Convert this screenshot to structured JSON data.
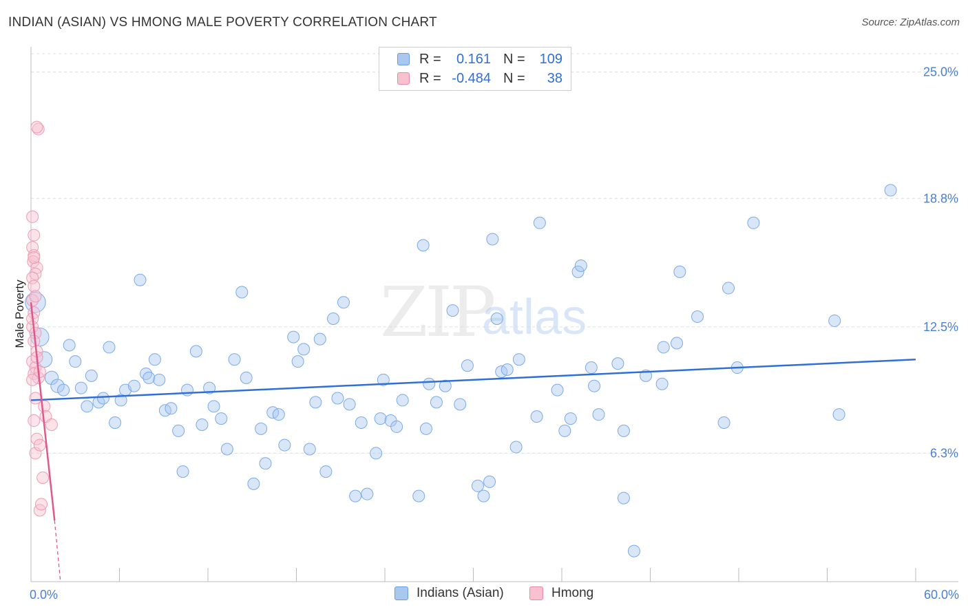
{
  "header": {
    "title": "INDIAN (ASIAN) VS HMONG MALE POVERTY CORRELATION CHART",
    "source": "Source: ZipAtlas.com"
  },
  "watermark": {
    "zip": "ZIP",
    "atlas": "atlas"
  },
  "legend": {
    "rows": [
      {
        "r_label": "R =",
        "r_value": "0.161",
        "n_label": "N =",
        "n_value": "109",
        "color": "#a8c8f0",
        "border": "#6a9be0"
      },
      {
        "r_label": "R =",
        "r_value": "-0.484",
        "n_label": "N =",
        "n_value": "38",
        "color": "#f9c0d0",
        "border": "#e88aa6"
      }
    ]
  },
  "bottom_legend": {
    "items": [
      {
        "label": "Indians (Asian)",
        "color": "#a8c8f0",
        "border": "#6a9be0"
      },
      {
        "label": "Hmong",
        "color": "#f9c0d0",
        "border": "#e88aa6"
      }
    ]
  },
  "chart_data": {
    "type": "scatter",
    "title": "INDIAN (ASIAN) VS HMONG MALE POVERTY CORRELATION CHART",
    "xlabel": "",
    "ylabel": "Male Poverty",
    "xlim": [
      0,
      60
    ],
    "ylim": [
      0,
      25.9
    ],
    "x_tick_labels": [
      "0.0%",
      "60.0%"
    ],
    "y_tick_labels": [
      "6.3%",
      "12.5%",
      "18.8%",
      "25.0%"
    ],
    "y_ticks": [
      6.3,
      12.5,
      18.8,
      25.0
    ],
    "grid": true,
    "series": [
      {
        "name": "Indians (Asian)",
        "color": "#7aaae8",
        "trend": {
          "x": [
            0,
            60
          ],
          "y": [
            8.9,
            10.9
          ]
        },
        "points": [
          [
            0.3,
            13.7,
            3
          ],
          [
            0.6,
            12.0,
            2.4
          ],
          [
            0.9,
            10.9,
            1.8
          ],
          [
            1.4,
            10.0,
            1.3
          ],
          [
            1.8,
            9.6,
            1.3
          ],
          [
            2.2,
            9.4,
            1
          ],
          [
            2.6,
            11.6,
            1
          ],
          [
            3.0,
            10.8,
            1
          ],
          [
            3.4,
            9.5,
            1
          ],
          [
            3.8,
            8.6,
            1
          ],
          [
            4.1,
            10.1,
            1
          ],
          [
            4.6,
            8.8,
            1
          ],
          [
            4.9,
            9.0,
            1
          ],
          [
            5.3,
            11.5,
            1
          ],
          [
            5.7,
            7.8,
            1
          ],
          [
            6.1,
            8.9,
            1
          ],
          [
            6.4,
            9.4,
            1
          ],
          [
            7.0,
            9.6,
            1
          ],
          [
            7.4,
            14.8,
            1
          ],
          [
            7.8,
            10.2,
            1
          ],
          [
            8.0,
            10.0,
            1
          ],
          [
            8.4,
            10.9,
            1
          ],
          [
            8.7,
            9.9,
            1
          ],
          [
            9.1,
            8.4,
            1
          ],
          [
            9.5,
            8.5,
            1
          ],
          [
            10.0,
            7.4,
            1
          ],
          [
            10.3,
            5.4,
            1
          ],
          [
            10.6,
            9.4,
            1
          ],
          [
            11.2,
            11.3,
            1
          ],
          [
            11.6,
            7.7,
            1
          ],
          [
            12.1,
            9.5,
            1
          ],
          [
            12.4,
            8.6,
            1
          ],
          [
            12.9,
            8.0,
            1
          ],
          [
            13.3,
            6.5,
            1
          ],
          [
            13.8,
            10.9,
            1
          ],
          [
            14.3,
            14.2,
            1
          ],
          [
            14.6,
            10.0,
            1
          ],
          [
            15.1,
            4.8,
            1
          ],
          [
            15.6,
            7.5,
            1
          ],
          [
            15.9,
            5.8,
            1
          ],
          [
            16.4,
            8.3,
            1
          ],
          [
            16.8,
            8.2,
            1
          ],
          [
            17.2,
            6.7,
            1
          ],
          [
            17.8,
            12.0,
            1
          ],
          [
            18.1,
            10.8,
            1
          ],
          [
            18.5,
            11.4,
            1
          ],
          [
            18.9,
            6.5,
            1
          ],
          [
            19.3,
            8.8,
            1
          ],
          [
            19.6,
            11.9,
            1
          ],
          [
            20.0,
            5.4,
            1
          ],
          [
            20.5,
            12.9,
            1
          ],
          [
            20.8,
            9.0,
            1
          ],
          [
            21.2,
            13.7,
            1
          ],
          [
            21.6,
            8.7,
            1
          ],
          [
            22.0,
            4.2,
            1
          ],
          [
            22.4,
            7.8,
            1
          ],
          [
            22.8,
            4.3,
            1
          ],
          [
            23.4,
            6.3,
            1
          ],
          [
            23.7,
            8.0,
            1
          ],
          [
            23.9,
            9.9,
            1
          ],
          [
            24.4,
            7.9,
            1
          ],
          [
            24.8,
            7.6,
            1
          ],
          [
            25.2,
            8.9,
            1
          ],
          [
            26.3,
            4.2,
            1
          ],
          [
            26.6,
            16.5,
            1
          ],
          [
            26.8,
            7.5,
            1
          ],
          [
            27.0,
            9.7,
            1
          ],
          [
            27.5,
            8.8,
            1
          ],
          [
            28.1,
            9.6,
            1
          ],
          [
            28.6,
            13.3,
            1
          ],
          [
            29.1,
            8.7,
            1
          ],
          [
            29.6,
            10.6,
            1
          ],
          [
            30.3,
            4.7,
            1
          ],
          [
            30.7,
            4.2,
            1
          ],
          [
            31.1,
            4.9,
            1
          ],
          [
            31.3,
            16.8,
            1
          ],
          [
            31.6,
            12.9,
            1
          ],
          [
            31.9,
            10.3,
            1
          ],
          [
            32.3,
            10.4,
            1
          ],
          [
            32.9,
            6.6,
            1
          ],
          [
            33.1,
            10.9,
            1
          ],
          [
            34.3,
            8.1,
            1
          ],
          [
            34.5,
            17.6,
            1
          ],
          [
            35.7,
            9.4,
            1
          ],
          [
            36.2,
            7.4,
            1
          ],
          [
            36.6,
            8.0,
            1
          ],
          [
            37.1,
            15.2,
            1
          ],
          [
            37.3,
            15.5,
            1
          ],
          [
            38.0,
            10.5,
            1
          ],
          [
            38.2,
            9.6,
            1
          ],
          [
            38.5,
            8.2,
            1
          ],
          [
            39.8,
            10.7,
            1
          ],
          [
            40.2,
            7.4,
            1
          ],
          [
            40.2,
            4.1,
            1
          ],
          [
            40.9,
            1.5,
            1
          ],
          [
            41.7,
            10.1,
            1
          ],
          [
            42.8,
            9.7,
            1
          ],
          [
            42.9,
            11.5,
            1
          ],
          [
            43.8,
            11.7,
            1
          ],
          [
            44.0,
            15.2,
            1
          ],
          [
            45.2,
            13.0,
            1
          ],
          [
            47.0,
            7.8,
            1
          ],
          [
            47.3,
            14.4,
            1
          ],
          [
            47.9,
            10.5,
            1
          ],
          [
            49.0,
            17.6,
            1
          ],
          [
            54.5,
            12.8,
            1
          ],
          [
            54.8,
            8.2,
            1
          ],
          [
            58.3,
            19.2,
            1
          ]
        ]
      },
      {
        "name": "Hmong",
        "color": "#f0a6bd",
        "trend": {
          "x": [
            0,
            1.6
          ],
          "y": [
            13.7,
            3.0
          ]
        },
        "trend_ext": {
          "x": [
            1.6,
            2.0
          ],
          "y": [
            3.0,
            0.0
          ]
        },
        "points": [
          [
            0.1,
            13.8,
            1
          ],
          [
            0.2,
            13.2,
            1
          ],
          [
            0.1,
            12.5,
            1
          ],
          [
            0.3,
            12.2,
            1
          ],
          [
            0.2,
            11.8,
            1
          ],
          [
            0.4,
            11.3,
            1
          ],
          [
            0.1,
            10.8,
            1
          ],
          [
            0.3,
            10.5,
            1
          ],
          [
            0.2,
            10.2,
            1
          ],
          [
            0.5,
            10.0,
            1
          ],
          [
            0.6,
            10.3,
            1
          ],
          [
            0.1,
            9.9,
            1
          ],
          [
            0.3,
            9.0,
            1
          ],
          [
            0.2,
            7.9,
            1
          ],
          [
            0.4,
            7.0,
            1
          ],
          [
            0.3,
            6.3,
            1
          ],
          [
            0.6,
            6.7,
            1
          ],
          [
            0.1,
            17.9,
            1
          ],
          [
            0.2,
            17.0,
            1
          ],
          [
            0.1,
            16.4,
            1
          ],
          [
            0.2,
            16.0,
            1
          ],
          [
            0.15,
            15.7,
            1
          ],
          [
            0.4,
            15.4,
            1
          ],
          [
            0.3,
            15.1,
            1
          ],
          [
            0.1,
            14.9,
            1
          ],
          [
            0.2,
            14.5,
            1
          ],
          [
            0.5,
            22.2,
            1
          ],
          [
            0.4,
            22.3,
            1
          ],
          [
            0.6,
            3.5,
            1
          ],
          [
            0.7,
            3.8,
            1
          ],
          [
            0.8,
            5.1,
            1
          ],
          [
            0.9,
            8.6,
            1
          ],
          [
            1.0,
            8.1,
            1
          ],
          [
            1.4,
            7.7,
            1
          ],
          [
            0.2,
            15.9,
            1
          ],
          [
            0.3,
            14.0,
            1
          ],
          [
            0.1,
            12.9,
            1
          ],
          [
            0.4,
            11.0,
            1
          ]
        ]
      }
    ]
  }
}
